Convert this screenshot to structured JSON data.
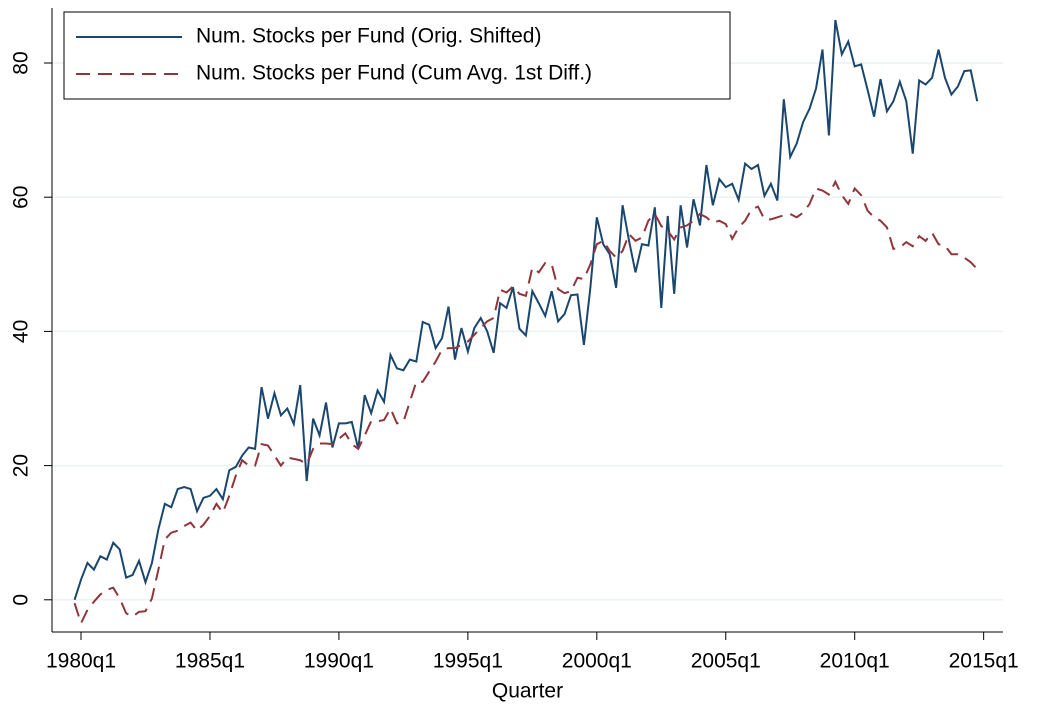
{
  "chart_data": {
    "type": "line",
    "x_label": "Quarter",
    "x": [
      79,
      80,
      81,
      82,
      83,
      84,
      85,
      86,
      87,
      88,
      89,
      90,
      91,
      92,
      93,
      94,
      95,
      96,
      97,
      98,
      99,
      100,
      101,
      102,
      103,
      104,
      105,
      106,
      107,
      108,
      109,
      110,
      111,
      112,
      113,
      114,
      115,
      116,
      117,
      118,
      119,
      120,
      121,
      122,
      123,
      124,
      125,
      126,
      127,
      128,
      129,
      130,
      131,
      132,
      133,
      134,
      135,
      136,
      137,
      138,
      139,
      140,
      141,
      142,
      143,
      144,
      145,
      146,
      147,
      148,
      149,
      150,
      151,
      152,
      153,
      154,
      155,
      156,
      157,
      158,
      159,
      160,
      161,
      162,
      163,
      164,
      165,
      166,
      167,
      168,
      169,
      170,
      171,
      172,
      173,
      174,
      175,
      176,
      177,
      178,
      179,
      180,
      181,
      182,
      183,
      184,
      185,
      186,
      187,
      188,
      189,
      190,
      191,
      192,
      193,
      194,
      195,
      196,
      197,
      198,
      199,
      200,
      201,
      202,
      203,
      204,
      205,
      206,
      207,
      208,
      209,
      210,
      211,
      212,
      213,
      214,
      215,
      216,
      217,
      218,
      219
    ],
    "series": [
      {
        "name": "Num. Stocks per Fund (Orig. Shifted)",
        "color": "#1a476f",
        "line_style": "solid",
        "values": [
          0,
          3,
          5.5,
          4.5,
          6.5,
          6,
          8.5,
          7.5,
          3.3,
          3.7,
          5.8,
          2.6,
          5.5,
          10.5,
          14.3,
          13.8,
          16.5,
          16.8,
          16.5,
          13.2,
          15.2,
          15.5,
          16.5,
          15,
          19.3,
          19.8,
          21.5,
          22.7,
          22.5,
          31.7,
          27,
          30.8,
          27.5,
          28.5,
          26.2,
          32,
          17.7,
          27,
          24.5,
          29.4,
          22.7,
          26.3,
          26.3,
          26.5,
          22.5,
          30.5,
          27.8,
          31.2,
          29.5,
          36.5,
          34.5,
          34.2,
          35.8,
          35.5,
          41.4,
          41,
          37.5,
          39,
          43.7,
          35.8,
          40.5,
          37,
          40.5,
          42,
          40,
          36.8,
          44.2,
          43.5,
          46.6,
          40.4,
          39.4,
          46,
          44.2,
          42.3,
          46,
          41.5,
          42.6,
          45.4,
          45.5,
          38,
          46.5,
          57,
          53,
          51.5,
          46.5,
          58.8,
          53.5,
          48.8,
          53,
          52.8,
          58.5,
          43.5,
          57.2,
          45.6,
          58.8,
          52.5,
          59.7,
          55.8,
          64.8,
          58.8,
          62.7,
          61.5,
          62,
          59.6,
          65,
          64.2,
          64.8,
          60.2,
          62,
          59.5,
          74.6,
          66,
          68,
          71.2,
          73.2,
          76.2,
          82,
          69.2,
          86.4,
          81.3,
          83.2,
          79.5,
          79.8,
          76,
          72,
          77.6,
          72.8,
          74.3,
          77.2,
          74.3,
          66.5,
          77.4,
          76.8,
          77.8,
          82,
          77.8,
          75.3,
          76.5,
          78.8,
          78.9,
          74.3
        ]
      },
      {
        "name": "Num. Stocks per Fund (Cum Avg. 1st Diff.)",
        "color": "#90353b",
        "line_style": "dashed",
        "values": [
          -0.5,
          -3.5,
          -1.5,
          -0.3,
          0.8,
          1.5,
          1.8,
          0.2,
          -2,
          -2.5,
          -1.8,
          -1.7,
          0.2,
          4.5,
          9,
          10,
          10.3,
          11,
          11.5,
          10.3,
          11.2,
          12.5,
          14.3,
          13,
          15.5,
          18.5,
          20.8,
          20,
          20,
          23.2,
          23,
          21.5,
          20,
          21.2,
          21,
          20.8,
          20.2,
          22.5,
          23.3,
          23.3,
          23.2,
          24,
          24.8,
          23.2,
          22.5,
          24.5,
          26.6,
          26.6,
          26.8,
          28.5,
          26.3,
          26.5,
          29.5,
          32.5,
          32.5,
          34,
          35.5,
          37.3,
          37.5,
          37.5,
          38,
          38.5,
          39.5,
          40.5,
          41.5,
          42,
          46.2,
          45.8,
          46.7,
          45.6,
          45.3,
          49.5,
          48.8,
          50.2,
          50,
          46.3,
          45.7,
          46,
          48,
          47.8,
          50,
          53,
          53.5,
          52,
          51,
          52,
          54.5,
          53.5,
          54,
          56.5,
          57.5,
          55.7,
          55,
          53.7,
          55.5,
          55.8,
          56.5,
          57.5,
          57,
          56.2,
          56.5,
          56,
          53.8,
          55.5,
          56.5,
          58.2,
          58.6,
          56.7,
          56.7,
          57,
          57.3,
          57.5,
          57,
          57.7,
          59,
          61.3,
          61,
          60.4,
          62.3,
          60.3,
          59,
          61.3,
          60.3,
          58,
          57,
          56.5,
          55.5,
          52.3,
          52.5,
          53.3,
          52.7,
          54.2,
          53.5,
          54.7,
          53,
          52.8,
          51.5,
          51.5,
          51,
          50.3,
          49.3
        ]
      }
    ],
    "xlim": [
      75.5,
      223
    ],
    "xticks": [
      {
        "value": 80,
        "label": "1980q1"
      },
      {
        "value": 100,
        "label": "1985q1"
      },
      {
        "value": 120,
        "label": "1990q1"
      },
      {
        "value": 140,
        "label": "1995q1"
      },
      {
        "value": 160,
        "label": "2000q1"
      },
      {
        "value": 180,
        "label": "2005q1"
      },
      {
        "value": 200,
        "label": "2010q1"
      },
      {
        "value": 220,
        "label": "2015q1"
      }
    ],
    "ylim": [
      -4.8,
      88.2
    ],
    "yticks": [
      0,
      20,
      40,
      60,
      80
    ],
    "grid": true,
    "legend": "top-left"
  }
}
